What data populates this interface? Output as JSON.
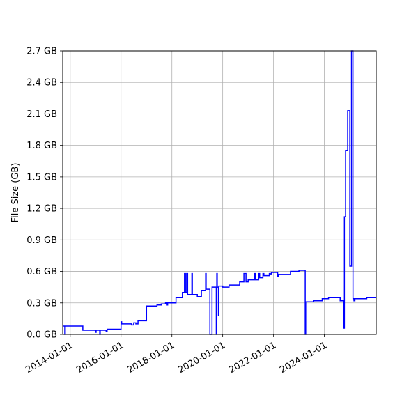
{
  "chart_data": {
    "type": "line",
    "title": "",
    "xlabel": "",
    "ylabel": "File Size (GB)",
    "x_axis": {
      "kind": "date",
      "range": [
        "2013-09-15",
        "2026-01-15"
      ],
      "ticks": [
        "2014-01-01",
        "2016-01-01",
        "2018-01-01",
        "2020-01-01",
        "2022-01-01",
        "2024-01-01"
      ]
    },
    "y_axis": {
      "range": [
        0,
        2.7
      ],
      "ticks": [
        0.0,
        0.3,
        0.6,
        0.9,
        1.2,
        1.5,
        1.8,
        2.1,
        2.4,
        2.7
      ],
      "tick_suffix": " GB"
    },
    "grid": true,
    "line_style": "steps-post",
    "series": [
      {
        "name": "",
        "color": "#0000ff",
        "points": [
          [
            "2013-09-15",
            0.08
          ],
          [
            "2013-10-15",
            0.0
          ],
          [
            "2013-10-22",
            0.08
          ],
          [
            "2014-07-01",
            0.04
          ],
          [
            "2015-01-01",
            0.02
          ],
          [
            "2015-01-08",
            0.04
          ],
          [
            "2015-03-01",
            0.0
          ],
          [
            "2015-03-08",
            0.04
          ],
          [
            "2015-06-01",
            0.03
          ],
          [
            "2015-06-15",
            0.05
          ],
          [
            "2016-01-01",
            0.12
          ],
          [
            "2016-01-10",
            0.1
          ],
          [
            "2016-06-01",
            0.09
          ],
          [
            "2016-07-01",
            0.11
          ],
          [
            "2016-08-01",
            0.1
          ],
          [
            "2016-09-01",
            0.13
          ],
          [
            "2017-01-01",
            0.27
          ],
          [
            "2017-06-01",
            0.28
          ],
          [
            "2017-08-01",
            0.29
          ],
          [
            "2017-10-01",
            0.3
          ],
          [
            "2017-10-15",
            0.28
          ],
          [
            "2017-11-01",
            0.3
          ],
          [
            "2018-03-01",
            0.35
          ],
          [
            "2018-06-01",
            0.4
          ],
          [
            "2018-07-01",
            0.58
          ],
          [
            "2018-07-15",
            0.4
          ],
          [
            "2018-08-01",
            0.58
          ],
          [
            "2018-08-15",
            0.38
          ],
          [
            "2018-10-01",
            0.38
          ],
          [
            "2018-10-15",
            0.58
          ],
          [
            "2018-10-22",
            0.38
          ],
          [
            "2019-01-01",
            0.36
          ],
          [
            "2019-03-01",
            0.42
          ],
          [
            "2019-05-01",
            0.58
          ],
          [
            "2019-05-08",
            0.43
          ],
          [
            "2019-07-01",
            0.0
          ],
          [
            "2019-08-01",
            0.45
          ],
          [
            "2019-10-01",
            0.0
          ],
          [
            "2019-10-08",
            0.58
          ],
          [
            "2019-10-15",
            0.45
          ],
          [
            "2019-11-01",
            0.18
          ],
          [
            "2019-11-08",
            0.46
          ],
          [
            "2020-01-01",
            0.45
          ],
          [
            "2020-04-01",
            0.47
          ],
          [
            "2020-09-01",
            0.5
          ],
          [
            "2020-11-01",
            0.58
          ],
          [
            "2020-12-01",
            0.5
          ],
          [
            "2021-01-01",
            0.52
          ],
          [
            "2021-04-01",
            0.58
          ],
          [
            "2021-04-15",
            0.52
          ],
          [
            "2021-06-01",
            0.58
          ],
          [
            "2021-06-15",
            0.54
          ],
          [
            "2021-08-01",
            0.58
          ],
          [
            "2021-08-15",
            0.56
          ],
          [
            "2021-11-01",
            0.58
          ],
          [
            "2021-11-15",
            0.57
          ],
          [
            "2021-12-01",
            0.59
          ],
          [
            "2022-03-01",
            0.55
          ],
          [
            "2022-03-15",
            0.57
          ],
          [
            "2022-09-01",
            0.6
          ],
          [
            "2023-01-01",
            0.61
          ],
          [
            "2023-04-01",
            0.0
          ],
          [
            "2023-04-08",
            0.31
          ],
          [
            "2023-08-01",
            0.32
          ],
          [
            "2023-12-01",
            0.34
          ],
          [
            "2024-03-01",
            0.35
          ],
          [
            "2024-08-15",
            0.32
          ],
          [
            "2024-10-01",
            0.06
          ],
          [
            "2024-10-15",
            1.12
          ],
          [
            "2024-11-01",
            1.75
          ],
          [
            "2024-12-01",
            2.13
          ],
          [
            "2025-01-01",
            0.65
          ],
          [
            "2025-01-25",
            2.7
          ],
          [
            "2025-02-15",
            0.34
          ],
          [
            "2025-03-01",
            0.32
          ],
          [
            "2025-03-15",
            0.34
          ],
          [
            "2025-09-01",
            0.35
          ],
          [
            "2026-01-15",
            0.35
          ]
        ]
      }
    ]
  }
}
